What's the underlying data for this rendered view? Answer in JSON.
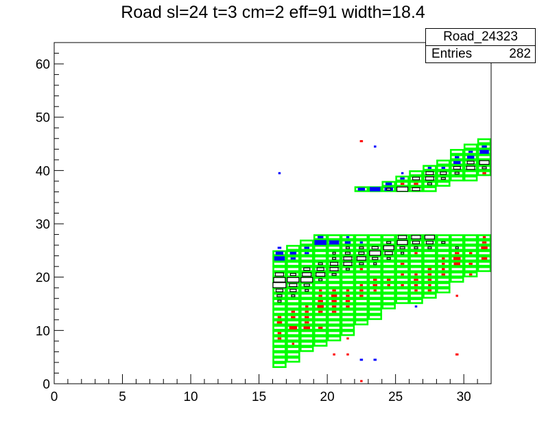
{
  "chart_data": {
    "type": "heatmap",
    "title": "Road sl=24 t=3 cm=2 eff=91 width=18.4",
    "xlabel": "",
    "ylabel": "",
    "xlim": [
      0,
      32
    ],
    "ylim": [
      0,
      64
    ],
    "x_ticks": [
      0,
      5,
      10,
      15,
      20,
      25,
      30
    ],
    "y_ticks": [
      0,
      10,
      20,
      30,
      40,
      50,
      60
    ],
    "grid": false,
    "legend": "none",
    "stats_box": {
      "name": "Road_24323",
      "entries_label": "Entries",
      "entries_value": "282"
    },
    "road_outline_color": "#00ff00",
    "road_cells": [
      {
        "x": 16,
        "y0": 3,
        "y1": 25
      },
      {
        "x": 17,
        "y0": 4,
        "y1": 26
      },
      {
        "x": 18,
        "y0": 6,
        "y1": 27
      },
      {
        "x": 19,
        "y0": 7,
        "y1": 28
      },
      {
        "x": 20,
        "y0": 8,
        "y1": 28
      },
      {
        "x": 21,
        "y0": 9,
        "y1": 28
      },
      {
        "x": 22,
        "y0": 11,
        "y1": 28
      },
      {
        "x": 23,
        "y0": 12,
        "y1": 28
      },
      {
        "x": 24,
        "y0": 14,
        "y1": 28
      },
      {
        "x": 25,
        "y0": 15,
        "y1": 28
      },
      {
        "x": 26,
        "y0": 15,
        "y1": 28
      },
      {
        "x": 27,
        "y0": 16,
        "y1": 28
      },
      {
        "x": 28,
        "y0": 17,
        "y1": 28
      },
      {
        "x": 29,
        "y0": 19,
        "y1": 28
      },
      {
        "x": 30,
        "y0": 20,
        "y1": 28
      },
      {
        "x": 31,
        "y0": 21,
        "y1": 28
      },
      {
        "x": 22,
        "y0": 36,
        "y1": 37
      },
      {
        "x": 23,
        "y0": 36,
        "y1": 37
      },
      {
        "x": 24,
        "y0": 36,
        "y1": 38
      },
      {
        "x": 25,
        "y0": 36,
        "y1": 39
      },
      {
        "x": 26,
        "y0": 36,
        "y1": 40
      },
      {
        "x": 27,
        "y0": 36,
        "y1": 41
      },
      {
        "x": 28,
        "y0": 37,
        "y1": 42
      },
      {
        "x": 29,
        "y0": 38,
        "y1": 44
      },
      {
        "x": 30,
        "y0": 38,
        "y1": 45
      },
      {
        "x": 31,
        "y0": 39,
        "y1": 46
      }
    ],
    "series": [
      {
        "color": "#ff0000",
        "points": [
          [
            22,
            45,
            0.2
          ],
          [
            22,
            0,
            0.15
          ],
          [
            20,
            5,
            0.15
          ],
          [
            21,
            5,
            0.15
          ],
          [
            21,
            8,
            0.15
          ],
          [
            29,
            5,
            0.2
          ],
          [
            16,
            8,
            0.25
          ],
          [
            16,
            9,
            0.25
          ],
          [
            16,
            11,
            0.35
          ],
          [
            16,
            12,
            0.25
          ],
          [
            17,
            10,
            0.55
          ],
          [
            17,
            12,
            0.3
          ],
          [
            17,
            13,
            0.25
          ],
          [
            17,
            7,
            0.15
          ],
          [
            18,
            10,
            0.45
          ],
          [
            18,
            11,
            0.3
          ],
          [
            18,
            12,
            0.3
          ],
          [
            18,
            13,
            0.25
          ],
          [
            18,
            14,
            0.2
          ],
          [
            19,
            10,
            0.3
          ],
          [
            19,
            13,
            0.3
          ],
          [
            19,
            14,
            0.45
          ],
          [
            19,
            15,
            0.35
          ],
          [
            19,
            16,
            0.25
          ],
          [
            19,
            17,
            0.2
          ],
          [
            20,
            13,
            0.3
          ],
          [
            20,
            14,
            0.3
          ],
          [
            20,
            15,
            0.35
          ],
          [
            20,
            16,
            0.4
          ],
          [
            20,
            17,
            0.25
          ],
          [
            21,
            14,
            0.25
          ],
          [
            21,
            15,
            0.3
          ],
          [
            21,
            16,
            0.25
          ],
          [
            21,
            17,
            0.2
          ],
          [
            22,
            16,
            0.25
          ],
          [
            22,
            17,
            0.25
          ],
          [
            22,
            18,
            0.2
          ],
          [
            23,
            17,
            0.2
          ],
          [
            23,
            18,
            0.3
          ],
          [
            23,
            19,
            0.25
          ],
          [
            24,
            18,
            0.2
          ],
          [
            24,
            19,
            0.25
          ],
          [
            25,
            18,
            0.2
          ],
          [
            25,
            20,
            0.2
          ],
          [
            26,
            17,
            0.2
          ],
          [
            26,
            18,
            0.25
          ],
          [
            26,
            19,
            0.3
          ],
          [
            26,
            20,
            0.2
          ],
          [
            27,
            17,
            0.25
          ],
          [
            27,
            18,
            0.2
          ],
          [
            27,
            19,
            0.25
          ],
          [
            27,
            20,
            0.25
          ],
          [
            27,
            21,
            0.25
          ],
          [
            28,
            20,
            0.25
          ],
          [
            28,
            21,
            0.2
          ],
          [
            28,
            22,
            0.2
          ],
          [
            28,
            23,
            0.2
          ],
          [
            29,
            16,
            0.15
          ],
          [
            29,
            22,
            0.45
          ],
          [
            29,
            23,
            0.5
          ],
          [
            29,
            24,
            0.3
          ],
          [
            30,
            20,
            0.2
          ],
          [
            30,
            22,
            0.25
          ],
          [
            30,
            24,
            0.2
          ],
          [
            31,
            23,
            0.4
          ],
          [
            31,
            25,
            0.45
          ],
          [
            31,
            26,
            0.3
          ],
          [
            31,
            27,
            0.2
          ],
          [
            22,
            36,
            0.25
          ],
          [
            23,
            36,
            0.2
          ],
          [
            24,
            37,
            0.2
          ],
          [
            25,
            37,
            0.25
          ],
          [
            26,
            37,
            0.3
          ],
          [
            27,
            38,
            0.2
          ],
          [
            28,
            38,
            0.2
          ],
          [
            31,
            39,
            0.25
          ],
          [
            21,
            23,
            0.2
          ],
          [
            22,
            21,
            0.2
          ],
          [
            24,
            25,
            0.2
          ],
          [
            25,
            22,
            0.25
          ],
          [
            26,
            24,
            0.2
          ],
          [
            27,
            25,
            0.2
          ],
          [
            23,
            22,
            0.2
          ],
          [
            19,
            22,
            0.2
          ],
          [
            20,
            23,
            0.2
          ],
          [
            18,
            21,
            0.2
          ],
          [
            22,
            24,
            0.2
          ]
        ]
      },
      {
        "color": "#0000ff",
        "points": [
          [
            16,
            39,
            0.15
          ],
          [
            23,
            44,
            0.15
          ],
          [
            22,
            4,
            0.2
          ],
          [
            23,
            4,
            0.2
          ],
          [
            26,
            14,
            0.15
          ],
          [
            16,
            25,
            0.25
          ],
          [
            16,
            24,
            0.55
          ],
          [
            16,
            23,
            0.75
          ],
          [
            17,
            24,
            0.45
          ],
          [
            17,
            23,
            0.35
          ],
          [
            18,
            25,
            0.35
          ],
          [
            18,
            24,
            0.3
          ],
          [
            19,
            27,
            0.4
          ],
          [
            19,
            26,
            0.85
          ],
          [
            20,
            26,
            0.7
          ],
          [
            21,
            26,
            0.4
          ],
          [
            22,
            26,
            0.2
          ],
          [
            21,
            27,
            0.2
          ],
          [
            23,
            36,
            0.75
          ],
          [
            22,
            36,
            0.5
          ],
          [
            24,
            36,
            0.6
          ],
          [
            24,
            37,
            0.45
          ],
          [
            25,
            38,
            0.3
          ],
          [
            25,
            39,
            0.15
          ],
          [
            26,
            38,
            0.2
          ],
          [
            27,
            40,
            0.25
          ],
          [
            28,
            40,
            0.25
          ],
          [
            29,
            41,
            0.5
          ],
          [
            29,
            42,
            0.3
          ],
          [
            30,
            42,
            0.5
          ],
          [
            30,
            43,
            0.3
          ],
          [
            31,
            43,
            0.65
          ],
          [
            31,
            44,
            0.35
          ],
          [
            25,
            36,
            0.2
          ]
        ]
      },
      {
        "color": "#000000",
        "points": [
          [
            16,
            18,
            0.95
          ],
          [
            16,
            19,
            0.85
          ],
          [
            16,
            17,
            0.5
          ],
          [
            16,
            16,
            0.35
          ],
          [
            16,
            15,
            0.25
          ],
          [
            16,
            20,
            0.6
          ],
          [
            17,
            19,
            0.85
          ],
          [
            17,
            18,
            0.55
          ],
          [
            17,
            17,
            0.45
          ],
          [
            17,
            20,
            0.4
          ],
          [
            17,
            16,
            0.25
          ],
          [
            18,
            19,
            0.85
          ],
          [
            18,
            20,
            0.65
          ],
          [
            18,
            18,
            0.4
          ],
          [
            18,
            21,
            0.45
          ],
          [
            18,
            17,
            0.25
          ],
          [
            19,
            20,
            0.65
          ],
          [
            19,
            21,
            0.5
          ],
          [
            19,
            22,
            0.3
          ],
          [
            19,
            19,
            0.25
          ],
          [
            20,
            21,
            0.6
          ],
          [
            20,
            22,
            0.55
          ],
          [
            20,
            20,
            0.3
          ],
          [
            20,
            23,
            0.25
          ],
          [
            21,
            22,
            0.6
          ],
          [
            21,
            23,
            0.6
          ],
          [
            21,
            24,
            0.35
          ],
          [
            21,
            21,
            0.25
          ],
          [
            22,
            23,
            0.65
          ],
          [
            22,
            24,
            0.4
          ],
          [
            22,
            22,
            0.3
          ],
          [
            23,
            24,
            0.8
          ],
          [
            23,
            25,
            0.45
          ],
          [
            23,
            23,
            0.4
          ],
          [
            23,
            22,
            0.2
          ],
          [
            24,
            25,
            0.75
          ],
          [
            24,
            24,
            0.55
          ],
          [
            24,
            26,
            0.3
          ],
          [
            24,
            23,
            0.25
          ],
          [
            25,
            26,
            0.75
          ],
          [
            25,
            27,
            0.6
          ],
          [
            25,
            25,
            0.35
          ],
          [
            25,
            24,
            0.2
          ],
          [
            26,
            27,
            0.65
          ],
          [
            26,
            26,
            0.5
          ],
          [
            26,
            25,
            0.25
          ],
          [
            27,
            27,
            0.7
          ],
          [
            27,
            26,
            0.5
          ],
          [
            27,
            25,
            0.25
          ],
          [
            28,
            26,
            0.25
          ],
          [
            29,
            25,
            0.2
          ],
          [
            21,
            25,
            0.25
          ],
          [
            22,
            25,
            0.3
          ],
          [
            20,
            24,
            0.2
          ],
          [
            25,
            36,
            0.8
          ],
          [
            26,
            36,
            0.55
          ],
          [
            26,
            38,
            0.5
          ],
          [
            27,
            38,
            0.6
          ],
          [
            27,
            39,
            0.55
          ],
          [
            27,
            37,
            0.3
          ],
          [
            28,
            39,
            0.45
          ],
          [
            28,
            38,
            0.3
          ],
          [
            29,
            40,
            0.5
          ],
          [
            29,
            39,
            0.3
          ],
          [
            30,
            40,
            0.6
          ],
          [
            30,
            41,
            0.5
          ],
          [
            31,
            41,
            0.7
          ],
          [
            31,
            40,
            0.3
          ],
          [
            24,
            36,
            0.3
          ]
        ]
      }
    ]
  }
}
